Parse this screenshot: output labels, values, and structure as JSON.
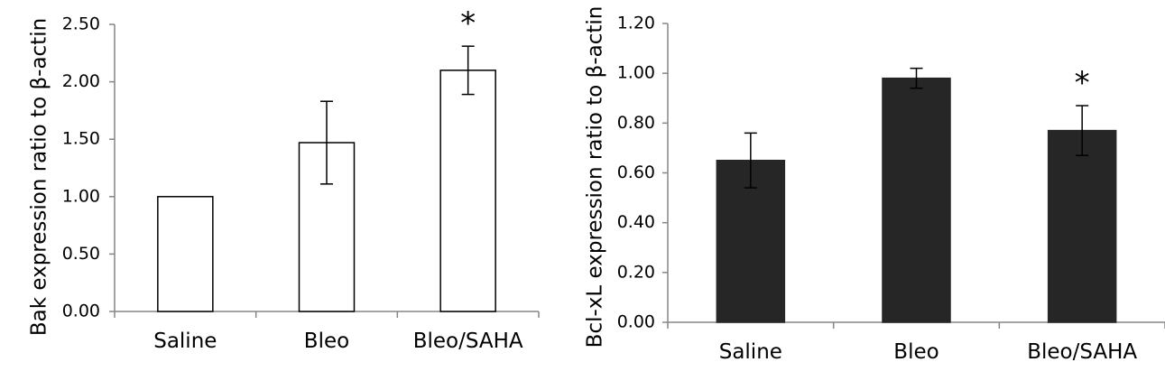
{
  "chart_data": [
    {
      "type": "bar",
      "categories": [
        "Saline",
        "Bleo",
        "Bleo/SAHA"
      ],
      "values": [
        1.0,
        1.47,
        2.1
      ],
      "errors": [
        0.0,
        0.36,
        0.21
      ],
      "significance": [
        "",
        "",
        "*"
      ],
      "ylabel": "Bak expression ratio to β-actin",
      "ylim": [
        0,
        2.5
      ],
      "yticks": [
        "0.00",
        "0.50",
        "1.00",
        "1.50",
        "2.00",
        "2.50"
      ],
      "bar_fill": "#ffffff",
      "bar_stroke": "#000000",
      "grid": false
    },
    {
      "type": "bar",
      "categories": [
        "Saline",
        "Bleo",
        "Bleo/SAHA"
      ],
      "values": [
        0.65,
        0.98,
        0.77
      ],
      "errors": [
        0.11,
        0.04,
        0.1
      ],
      "significance": [
        "",
        "",
        "*"
      ],
      "ylabel": "Bcl-xL expression ratio to β-actin",
      "ylim": [
        0,
        1.2
      ],
      "yticks": [
        "0.00",
        "0.20",
        "0.40",
        "0.60",
        "0.80",
        "1.00",
        "1.20"
      ],
      "bar_fill": "#262626",
      "bar_stroke": "#262626",
      "grid": false
    }
  ]
}
